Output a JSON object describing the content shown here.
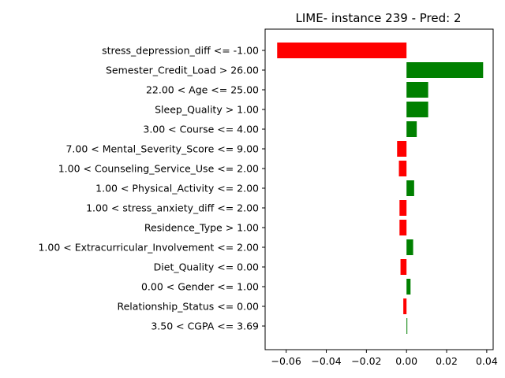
{
  "chart_data": {
    "type": "bar",
    "orientation": "horizontal",
    "title": "LIME- instance 239 - Pred: 2",
    "xlabel": "",
    "ylabel": "",
    "xlim": [
      -0.0705,
      0.0432
    ],
    "xticks": [
      -0.06,
      -0.04,
      -0.02,
      0.0,
      0.02,
      0.04
    ],
    "xtick_labels": [
      "−0.06",
      "−0.04",
      "−0.02",
      "0.00",
      "0.02",
      "0.04"
    ],
    "grid": false,
    "colors": {
      "positive": "#008000",
      "negative": "#ff0000"
    },
    "categories": [
      "stress_depression_diff <= -1.00",
      "Semester_Credit_Load > 26.00",
      "22.00 < Age <= 25.00",
      "Sleep_Quality > 1.00",
      "3.00 < Course <= 4.00",
      "7.00 < Mental_Severity_Score <= 9.00",
      "1.00 < Counseling_Service_Use <= 2.00",
      "1.00 < Physical_Activity <= 2.00",
      "1.00 < stress_anxiety_diff <= 2.00",
      "Residence_Type > 1.00",
      "1.00 < Extracurricular_Involvement <= 2.00",
      "Diet_Quality <= 0.00",
      "0.00 < Gender <= 1.00",
      "Relationship_Status <= 0.00",
      "3.50 < CGPA <= 3.69"
    ],
    "values": [
      -0.0645,
      0.0382,
      0.0108,
      0.0108,
      0.0051,
      -0.0047,
      -0.0038,
      0.0038,
      -0.0035,
      -0.0035,
      0.0033,
      -0.003,
      0.002,
      -0.0016,
      0.0003
    ]
  }
}
